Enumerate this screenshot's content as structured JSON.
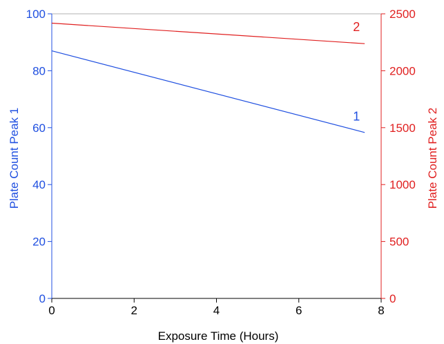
{
  "chart_data": {
    "type": "line",
    "xlabel": "Exposure Time (Hours)",
    "ylabel_left": "Plate Count Peak 1",
    "ylabel_right": "Plate Count Peak 2",
    "xlim": [
      0,
      8
    ],
    "ylim_left": [
      0,
      100
    ],
    "ylim_right": [
      0,
      2500
    ],
    "x_ticks": [
      "0",
      "2",
      "4",
      "6",
      "8"
    ],
    "y_ticks_left": [
      "0",
      "20",
      "40",
      "60",
      "80",
      "100"
    ],
    "y_ticks_right": [
      "0",
      "500",
      "1000",
      "1500",
      "2000",
      "2500"
    ],
    "grid": false,
    "colors": {
      "left_axis": "#1f4fe0",
      "right_axis": "#e01f1f",
      "x_axis": "#000000"
    },
    "series": [
      {
        "name": "1",
        "axis": "left",
        "color": "#1f4fe0",
        "x": [
          0,
          7.6
        ],
        "y": [
          87,
          58.3
        ]
      },
      {
        "name": "2",
        "axis": "right",
        "color": "#e01f1f",
        "x": [
          0,
          7.6
        ],
        "y": [
          2418,
          2238
        ]
      }
    ],
    "annotations": [
      {
        "text": "1",
        "series": "1",
        "x": 7.4,
        "y": 62.5
      },
      {
        "text": "2",
        "series": "2",
        "x": 7.4,
        "y": 2348
      }
    ]
  }
}
